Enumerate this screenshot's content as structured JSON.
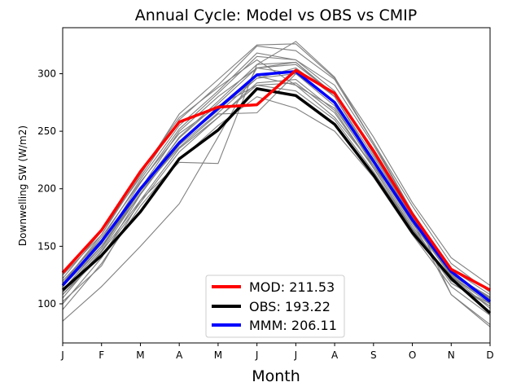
{
  "chart_data": {
    "type": "line",
    "title": "Annual Cycle: Model vs OBS vs CMIP",
    "xlabel": "Month",
    "ylabel": "Downwelling SW (W/m2)",
    "categories": [
      "J",
      "F",
      "M",
      "A",
      "M",
      "J",
      "J",
      "A",
      "S",
      "O",
      "N",
      "D"
    ],
    "yticks": [
      100,
      150,
      200,
      250,
      300
    ],
    "ylim": [
      66,
      340
    ],
    "legend_position": "lower-center",
    "series": [
      {
        "name": "MOD",
        "label": "MOD: 211.53",
        "color": "#ff0000",
        "values": [
          127,
          164,
          215,
          258,
          271,
          273,
          303,
          283,
          233,
          178,
          130,
          112
        ]
      },
      {
        "name": "OBS",
        "label": "OBS: 193.22",
        "color": "#000000",
        "values": [
          112,
          142,
          180,
          226,
          251,
          287,
          281,
          256,
          212,
          162,
          122,
          92
        ]
      },
      {
        "name": "MMM",
        "label": "MMM: 206.11",
        "color": "#0000ff",
        "values": [
          116,
          154,
          200,
          240,
          270,
          299,
          302,
          275,
          224,
          173,
          128,
          102
        ]
      }
    ],
    "cmip_color": "#808080",
    "cmip_models": [
      [
        118,
        160,
        212,
        265,
        295,
        325,
        326,
        296,
        245,
        188,
        140,
        116
      ],
      [
        122,
        163,
        210,
        260,
        290,
        324,
        320,
        295,
        240,
        185,
        135,
        110
      ],
      [
        115,
        152,
        205,
        252,
        283,
        315,
        312,
        285,
        230,
        176,
        126,
        106
      ],
      [
        110,
        148,
        198,
        245,
        276,
        308,
        310,
        280,
        225,
        172,
        125,
        104
      ],
      [
        125,
        160,
        215,
        262,
        288,
        312,
        290,
        262,
        220,
        175,
        130,
        112
      ],
      [
        105,
        145,
        190,
        235,
        262,
        292,
        295,
        268,
        218,
        165,
        118,
        100
      ],
      [
        100,
        140,
        195,
        240,
        268,
        298,
        290,
        270,
        222,
        170,
        124,
        96
      ],
      [
        112,
        150,
        200,
        250,
        280,
        305,
        300,
        272,
        220,
        168,
        120,
        98
      ],
      [
        118,
        158,
        206,
        248,
        272,
        290,
        285,
        260,
        215,
        165,
        118,
        98
      ],
      [
        108,
        146,
        196,
        238,
        266,
        296,
        300,
        276,
        226,
        172,
        124,
        102
      ],
      [
        120,
        156,
        208,
        255,
        285,
        318,
        312,
        290,
        238,
        180,
        130,
        108
      ],
      [
        95,
        135,
        185,
        225,
        255,
        280,
        270,
        250,
        210,
        160,
        115,
        90
      ],
      [
        110,
        148,
        200,
        244,
        274,
        305,
        308,
        282,
        232,
        176,
        128,
        104
      ],
      [
        85,
        115,
        150,
        187,
        245,
        305,
        310,
        282,
        232,
        172,
        108,
        80
      ],
      [
        102,
        133,
        190,
        223,
        222,
        308,
        328,
        297,
        240,
        180,
        108,
        82
      ],
      [
        115,
        150,
        198,
        236,
        265,
        266,
        300,
        275,
        225,
        172,
        126,
        105
      ],
      [
        112,
        150,
        195,
        240,
        270,
        296,
        305,
        280,
        228,
        175,
        124,
        100
      ],
      [
        108,
        142,
        188,
        232,
        262,
        290,
        292,
        266,
        218,
        166,
        120,
        98
      ]
    ]
  }
}
